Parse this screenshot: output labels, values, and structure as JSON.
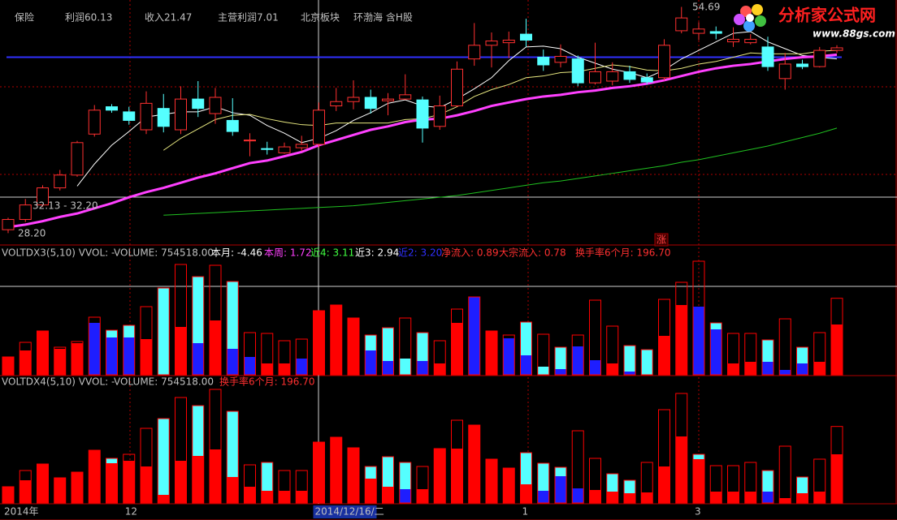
{
  "chart_data": {
    "type": "candlestick",
    "header": [
      {
        "text": "保险",
        "color": "#c0c0c0"
      },
      {
        "text": "利润60.13",
        "color": "#c0c0c0"
      },
      {
        "text": "收入21.47",
        "color": "#c0c0c0"
      },
      {
        "text": "主营利润7.01",
        "color": "#c0c0c0"
      },
      {
        "text": "北京板块",
        "color": "#c0c0c0"
      },
      {
        "text": "环渤海 含H股",
        "color": "#c0c0c0"
      }
    ],
    "annotations": {
      "high": "54.69",
      "low": "28.20",
      "range": "32.13 - 32.20",
      "tag": "涨"
    },
    "logo": {
      "title": "分析家公式网",
      "url": "www.88gs.com"
    },
    "categories": [
      "2014年",
      null,
      null,
      null,
      null,
      null,
      null,
      "12",
      null,
      null,
      null,
      null,
      null,
      null,
      null,
      null,
      null,
      null,
      "2014/12/16/二",
      null,
      null,
      null,
      null,
      null,
      null,
      null,
      null,
      null,
      null,
      null,
      "1",
      null,
      null,
      null,
      null,
      null,
      null,
      null,
      null,
      null,
      "3",
      null,
      null,
      null,
      null,
      null,
      null,
      null,
      null
    ],
    "ylim": [
      27,
      55.5
    ],
    "level_line": {
      "value": 48.8,
      "color": "#3030ff"
    },
    "up_color": "#ff3030",
    "down_color": "#55ffff",
    "open": [
      28.6,
      29.8,
      31.5,
      33.5,
      35.0,
      39.8,
      43.0,
      42.4,
      40.3,
      42.8,
      40.3,
      43.9,
      42.2,
      41.4,
      39.0,
      38.1,
      37.6,
      38.2,
      38.6,
      43.1,
      43.6,
      44.1,
      43.7,
      43.9,
      43.8,
      40.7,
      43.1,
      48.6,
      50.2,
      50.5,
      51.5,
      48.8,
      48.2,
      48.6,
      45.8,
      46.0,
      47.1,
      46.4,
      46.4,
      51.9,
      51.6,
      51.8,
      50.6,
      50.5,
      50.0,
      46.3,
      48.0,
      47.7,
      49.6
    ],
    "high": [
      30.0,
      32.2,
      33.8,
      35.6,
      39.0,
      43.2,
      43.3,
      43.0,
      44.8,
      44.5,
      45.4,
      46.0,
      45.2,
      44.0,
      39.9,
      38.9,
      38.8,
      39.6,
      43.5,
      45.2,
      46.1,
      45.0,
      44.6,
      46.8,
      44.2,
      44.3,
      48.3,
      52.8,
      51.7,
      51.8,
      53.3,
      49.7,
      50.3,
      49.0,
      50.5,
      48.2,
      47.8,
      46.9,
      50.9,
      54.69,
      52.9,
      52.4,
      52.3,
      51.5,
      51.2,
      49.3,
      48.5,
      50.0,
      50.2
    ],
    "low": [
      28.2,
      29.5,
      31.3,
      33.2,
      34.8,
      39.5,
      42.3,
      40.9,
      39.8,
      40.0,
      39.8,
      41.8,
      41.0,
      39.6,
      37.2,
      37.4,
      37.5,
      37.8,
      38.2,
      42.5,
      42.7,
      42.2,
      42.0,
      43.8,
      38.8,
      40.3,
      43.0,
      47.8,
      47.6,
      48.7,
      50.0,
      47.2,
      47.6,
      45.4,
      45.6,
      45.5,
      45.8,
      45.6,
      46.1,
      51.6,
      50.8,
      50.9,
      50.0,
      50.3,
      47.2,
      45.0,
      47.4,
      47.6,
      49.3
    ],
    "close": [
      29.8,
      31.5,
      33.5,
      35.0,
      38.8,
      42.6,
      42.6,
      41.4,
      43.4,
      40.7,
      43.9,
      42.8,
      44.1,
      40.1,
      39.1,
      38.0,
      38.3,
      38.6,
      42.6,
      43.6,
      44.1,
      42.8,
      43.9,
      44.4,
      40.5,
      43.1,
      47.4,
      50.2,
      50.7,
      50.8,
      50.8,
      47.9,
      48.9,
      45.8,
      47.1,
      47.1,
      46.2,
      45.9,
      50.2,
      53.4,
      52.1,
      51.6,
      50.9,
      50.9,
      47.7,
      48.0,
      47.7,
      49.6,
      49.9
    ],
    "lines": [
      {
        "color": "#ffffff",
        "values": [
          null,
          null,
          null,
          null,
          33.7,
          36.3,
          38.5,
          40.1,
          41.8,
          42.1,
          42.4,
          42.4,
          43.0,
          42.3,
          42.0,
          40.8,
          39.9,
          38.8,
          39.3,
          40.2,
          41.4,
          42.3,
          43.4,
          43.8,
          43.1,
          42.9,
          43.9,
          45.1,
          46.4,
          48.4,
          50.0,
          50.1,
          49.8,
          48.8,
          48.1,
          47.4,
          47.0,
          46.4,
          47.3,
          48.6,
          49.6,
          50.6,
          51.6,
          51.8,
          50.6,
          49.8,
          49.0,
          48.8,
          48.6
        ]
      },
      {
        "color": "#e8e880",
        "values": [
          null,
          null,
          null,
          null,
          null,
          null,
          null,
          null,
          null,
          37.9,
          39.3,
          40.4,
          41.5,
          42.0,
          42.1,
          41.6,
          41.2,
          40.9,
          40.8,
          41.1,
          41.1,
          41.1,
          41.1,
          41.5,
          41.6,
          42.1,
          43.0,
          44.2,
          45.0,
          45.6,
          46.4,
          46.6,
          47.0,
          47.1,
          47.5,
          47.9,
          47.7,
          47.3,
          47.2,
          47.5,
          48.0,
          48.3,
          48.8,
          49.3,
          49.2,
          49.2,
          49.2,
          49.5,
          49.6
        ]
      },
      {
        "color": "#ff40ff",
        "width": 3,
        "values": [
          28.9,
          29.2,
          29.6,
          30.1,
          30.5,
          31.1,
          31.7,
          32.4,
          33.0,
          33.5,
          34.1,
          34.7,
          35.2,
          35.8,
          36.4,
          36.7,
          37.2,
          37.7,
          38.5,
          39.1,
          39.7,
          40.3,
          40.7,
          41.2,
          41.5,
          41.6,
          42.0,
          42.5,
          43.1,
          43.5,
          43.9,
          44.2,
          44.4,
          44.7,
          44.9,
          45.2,
          45.4,
          45.7,
          46.1,
          46.6,
          47.1,
          47.5,
          47.8,
          48.0,
          48.3,
          48.6,
          48.8,
          48.9,
          49.1
        ]
      },
      {
        "color": "#20c020",
        "values": [
          null,
          null,
          null,
          null,
          null,
          null,
          null,
          null,
          null,
          30.3,
          30.4,
          30.5,
          30.6,
          30.7,
          30.8,
          30.9,
          31.0,
          31.1,
          31.2,
          31.3,
          31.4,
          31.6,
          31.8,
          32.0,
          32.2,
          32.4,
          32.6,
          32.9,
          33.2,
          33.5,
          33.8,
          34.1,
          34.3,
          34.6,
          34.9,
          35.2,
          35.5,
          35.8,
          36.1,
          36.5,
          36.8,
          37.2,
          37.6,
          38.0,
          38.4,
          38.9,
          39.4,
          39.9,
          40.5
        ]
      }
    ],
    "volume_panels": [
      {
        "header": [
          {
            "text": "VOLTDX3(5,10) VVOL: -",
            "color": "#c0c0c0"
          },
          {
            "text": "VOLUME: 754518.00",
            "color": "#c0c0c0"
          },
          {
            "text": "本月: -4.46",
            "color": "#ffffff"
          },
          {
            "text": "本周: 1.72",
            "color": "#ff40ff"
          },
          {
            "text": "近4: 3.11",
            "color": "#40ff40"
          },
          {
            "text": "近3: 2.94",
            "color": "#ffffff"
          },
          {
            "text": "近2: 3.20",
            "color": "#3030ff"
          },
          {
            "text": "净流入: 0.89",
            "color": "#ff3030"
          },
          {
            "text": "大宗流入: 0.78",
            "color": "#ff3030"
          },
          {
            "text": "换手率6个月: 196.70",
            "color": "#ff3030"
          }
        ],
        "ylim": [
          0,
          1136000
        ],
        "outline_color": "#ff0000",
        "total": [
          176000,
          320000,
          432000,
          272000,
          328000,
          568000,
          440000,
          488000,
          672000,
          856000,
          1088000,
          968000,
          1080000,
          920000,
          416000,
          408000,
          336000,
          352000,
          632000,
          688000,
          560000,
          392000,
          464000,
          560000,
          416000,
          336000,
          648000,
          768000,
          432000,
          392000,
          520000,
          400000,
          272000,
          392000,
          736000,
          480000,
          288000,
          248000,
          744000,
          912000,
          1120000,
          512000,
          408000,
          408000,
          344000,
          552000,
          272000,
          416000,
          754518
        ],
        "fill": [
          176000,
          240000,
          432000,
          256000,
          312000,
          512000,
          440000,
          488000,
          352000,
          856000,
          472000,
          968000,
          536000,
          920000,
          176000,
          112000,
          112000,
          160000,
          632000,
          688000,
          560000,
          392000,
          464000,
          160000,
          416000,
          112000,
          512000,
          768000,
          432000,
          360000,
          520000,
          80000,
          272000,
          280000,
          144000,
          112000,
          288000,
          248000,
          384000,
          688000,
          672000,
          512000,
          112000,
          128000,
          344000,
          48000,
          272000,
          128000,
          496000
        ],
        "fill_colors": [
          "#ff0000",
          "#ff0000",
          "#ff0000",
          "#ff0000",
          "#ff0000",
          "#1e1eff",
          "#55ffff",
          "#55ffff",
          "#ff0000",
          "#55ffff",
          "#ff0000",
          "#55ffff",
          "#ff0000",
          "#55ffff",
          "#1e1eff",
          "#ff0000",
          "#ff0000",
          "#1e1eff",
          "#ff0000",
          "#ff0000",
          "#ff0000",
          "#55ffff",
          "#55ffff",
          "#55ffff",
          "#55ffff",
          "#ff0000",
          "#ff0000",
          "#1e1eff",
          "#ff0000",
          "#1e1eff",
          "#55ffff",
          "#55ffff",
          "#55ffff",
          "#1e1eff",
          "#1e1eff",
          "#ff0000",
          "#55ffff",
          "#55ffff",
          "#ff0000",
          "#ff0000",
          "#1e1eff",
          "#55ffff",
          "#ff0000",
          "#ff0000",
          "#55ffff",
          "#1e1eff",
          "#55ffff",
          "#ff0000",
          "#ff0000"
        ],
        "inner": [
          null,
          null,
          null,
          null,
          null,
          null,
          368000,
          368000,
          null,
          null,
          null,
          312000,
          null,
          256000,
          null,
          null,
          null,
          null,
          null,
          null,
          null,
          240000,
          136000,
          null,
          136000,
          null,
          null,
          null,
          null,
          null,
          192000,
          null,
          56000,
          null,
          null,
          null,
          32000,
          null,
          null,
          null,
          null,
          448000,
          null,
          null,
          128000,
          null,
          112000,
          null,
          null
        ],
        "inner_colors": [
          null,
          null,
          null,
          null,
          null,
          null,
          "#1e1eff",
          "#1e1eff",
          null,
          null,
          null,
          "#1e1eff",
          null,
          "#1e1eff",
          null,
          null,
          null,
          null,
          null,
          null,
          null,
          "#1e1eff",
          "#1e1eff",
          null,
          "#1e1eff",
          null,
          null,
          null,
          null,
          null,
          "#1e1eff",
          null,
          "#1e1eff",
          null,
          null,
          null,
          "#1e1eff",
          null,
          null,
          null,
          null,
          "#1e1eff",
          null,
          null,
          "#1e1eff",
          null,
          "#1e1eff",
          null,
          null
        ]
      },
      {
        "header": [
          {
            "text": "VOLTDX4(5,10) VVOL: -",
            "color": "#c0c0c0"
          },
          {
            "text": "VOLUME: 754518.00",
            "color": "#c0c0c0"
          },
          {
            "text": "换手率6个月: 196.70",
            "color": "#ff3030"
          }
        ],
        "ylim": [
          0,
          1136000
        ],
        "outline_color": "#ff0000",
        "total": [
          160000,
          320000,
          384000,
          248000,
          304000,
          520000,
          440000,
          480000,
          736000,
          832000,
          1040000,
          960000,
          1120000,
          904000,
          376000,
          400000,
          320000,
          320000,
          600000,
          648000,
          544000,
          360000,
          456000,
          400000,
          360000,
          536000,
          816000,
          768000,
          432000,
          344000,
          496000,
          392000,
          352000,
          712000,
          440000,
          288000,
          224000,
          400000,
          920000,
          1080000,
          480000,
          368000,
          368000,
          400000,
          320000,
          560000,
          256000,
          432000,
          754518
        ],
        "fill": [
          160000,
          224000,
          384000,
          248000,
          304000,
          520000,
          440000,
          416000,
          360000,
          832000,
          416000,
          960000,
          528000,
          904000,
          160000,
          400000,
          120000,
          120000,
          600000,
          648000,
          544000,
          360000,
          456000,
          400000,
          136000,
          536000,
          536000,
          768000,
          432000,
          344000,
          496000,
          392000,
          352000,
          144000,
          128000,
          288000,
          224000,
          104000,
          360000,
          656000,
          480000,
          112000,
          112000,
          112000,
          320000,
          48000,
          256000,
          112000,
          480000
        ],
        "fill_colors": [
          "#ff0000",
          "#ff0000",
          "#ff0000",
          "#ff0000",
          "#ff0000",
          "#ff0000",
          "#55ffff",
          "#ff0000",
          "#ff0000",
          "#55ffff",
          "#ff0000",
          "#55ffff",
          "#ff0000",
          "#55ffff",
          "#ff0000",
          "#55ffff",
          "#ff0000",
          "#ff0000",
          "#ff0000",
          "#ff0000",
          "#ff0000",
          "#55ffff",
          "#55ffff",
          "#55ffff",
          "#ff0000",
          "#ff0000",
          "#ff0000",
          "#ff0000",
          "#ff0000",
          "#ff0000",
          "#55ffff",
          "#55ffff",
          "#55ffff",
          "#1e1eff",
          "#ff0000",
          "#55ffff",
          "#55ffff",
          "#ff0000",
          "#ff0000",
          "#ff0000",
          "#55ffff",
          "#ff0000",
          "#ff0000",
          "#ff0000",
          "#55ffff",
          "#ff0000",
          "#55ffff",
          "#ff0000",
          "#ff0000"
        ],
        "inner": [
          null,
          null,
          null,
          null,
          null,
          null,
          392000,
          null,
          null,
          80000,
          null,
          464000,
          null,
          256000,
          null,
          120000,
          null,
          null,
          null,
          null,
          null,
          240000,
          160000,
          136000,
          null,
          null,
          null,
          null,
          null,
          null,
          184000,
          120000,
          264000,
          null,
          null,
          112000,
          96000,
          null,
          null,
          null,
          432000,
          null,
          null,
          null,
          112000,
          null,
          96000,
          null,
          null
        ],
        "inner_colors": [
          null,
          null,
          null,
          null,
          null,
          null,
          "#ff0000",
          null,
          null,
          "#ff0000",
          null,
          "#ff0000",
          null,
          "#ff0000",
          null,
          "#ff0000",
          null,
          null,
          null,
          null,
          null,
          "#ff0000",
          "#ff0000",
          "#1e1eff",
          null,
          null,
          null,
          null,
          null,
          null,
          "#ff0000",
          "#1e1eff",
          "#1e1eff",
          null,
          null,
          "#ff0000",
          "#ff0000",
          null,
          null,
          null,
          "#ff0000",
          null,
          null,
          null,
          "#1e1eff",
          null,
          "#ff0000",
          null,
          null
        ]
      }
    ]
  }
}
